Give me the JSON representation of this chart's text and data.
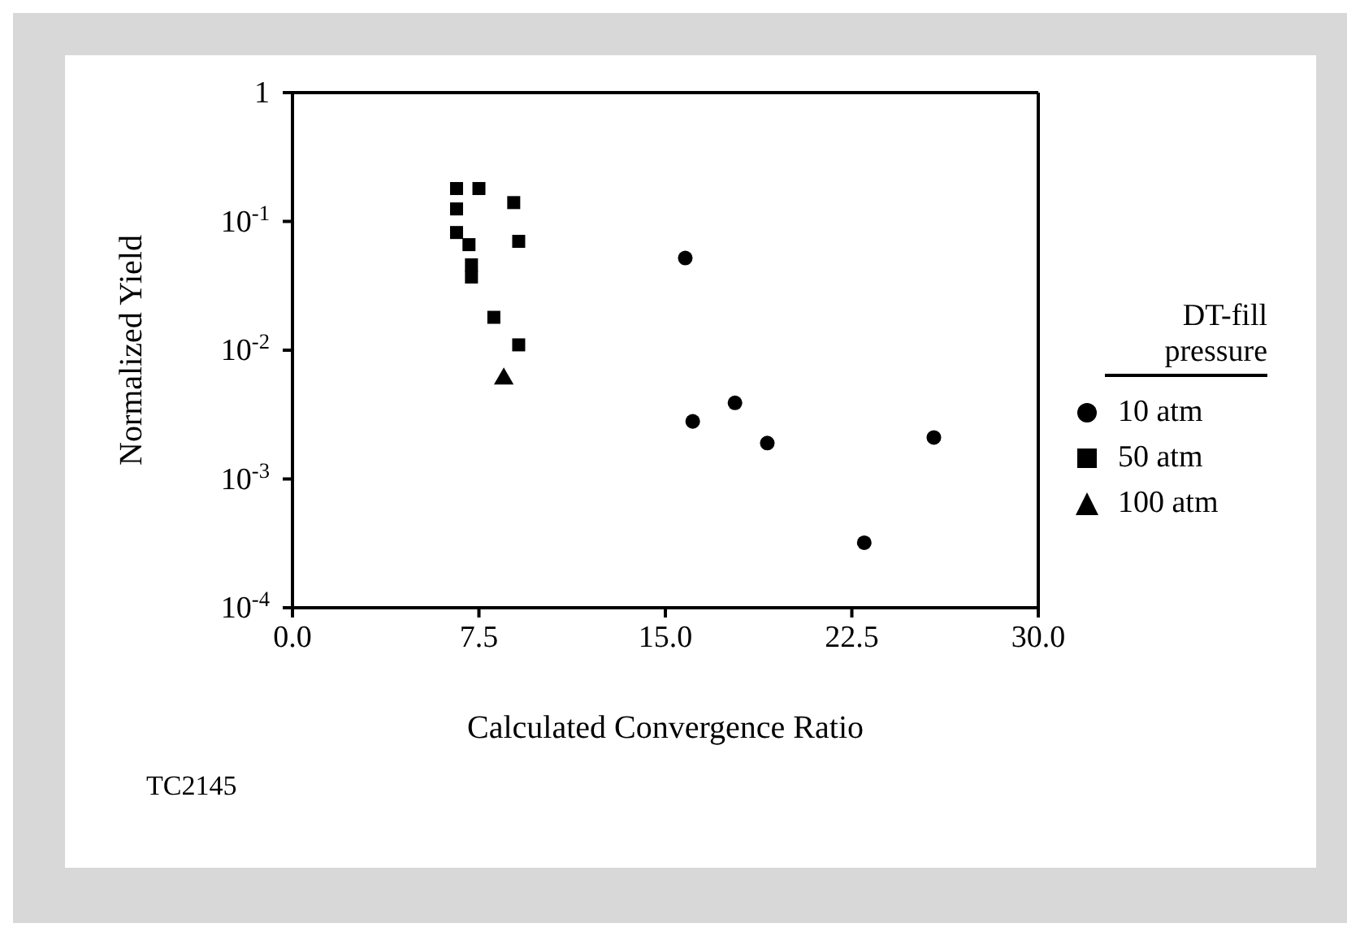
{
  "chart_data": {
    "type": "scatter",
    "xlabel": "Calculated Convergence Ratio",
    "ylabel": "Normalized Yield",
    "legend_title": "DT-fill pressure",
    "annotations": [
      "TC2145"
    ],
    "log": "y",
    "grid": false,
    "legend": "right",
    "xlim": [
      0,
      30
    ],
    "xticks": [
      {
        "value": 0,
        "label": "0.0"
      },
      {
        "value": 7.5,
        "label": "7.5"
      },
      {
        "value": 15,
        "label": "15.0"
      },
      {
        "value": 22.5,
        "label": "22.5"
      },
      {
        "value": 30,
        "label": "30.0"
      }
    ],
    "ylim": [
      0.0001,
      1
    ],
    "yticks": [
      {
        "value": 0.0001,
        "label": "10$^{-4}$"
      },
      {
        "value": 0.001,
        "label": "10$^{-3}$"
      },
      {
        "value": 0.01,
        "label": "10$^{-2}$"
      },
      {
        "value": 0.1,
        "label": "10$^{-1}$"
      },
      1
    ],
    "series": [
      {
        "name": "10 atm",
        "color": "#000000",
        "marker": "circle",
        "x": [
          15.8,
          16.1,
          17.8,
          19.1,
          23.0,
          25.8
        ],
        "values": [
          0.052,
          0.0028,
          0.0039,
          0.0019,
          0.00032,
          0.0021
        ]
      },
      {
        "name": "50 atm",
        "color": "#000000",
        "marker": "square",
        "x": [
          6.6,
          7.5,
          6.6,
          8.9,
          6.6,
          7.1,
          9.1,
          7.2,
          7.2,
          8.1,
          9.1
        ],
        "values": [
          0.18,
          0.18,
          0.125,
          0.14,
          0.082,
          0.066,
          0.07,
          0.046,
          0.037,
          0.018,
          0.011
        ]
      },
      {
        "name": "100 atm",
        "color": "#000000",
        "marker": "triangle",
        "x": [
          8.5
        ],
        "values": [
          0.006
        ]
      }
    ]
  }
}
